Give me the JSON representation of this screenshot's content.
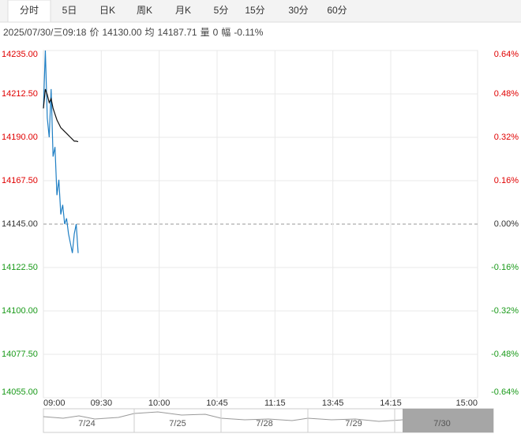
{
  "tabs": [
    "分时",
    "5日",
    "日K",
    "周K",
    "月K",
    "5分",
    "15分",
    "30分",
    "60分"
  ],
  "info": {
    "datetime": "2025/07/30/三09:18",
    "price_label": "价",
    "price": "14130.00",
    "avg_label": "均",
    "avg": "14187.71",
    "vol_label": "量",
    "vol": "0",
    "range_label": "幅",
    "range": "-0.11%"
  },
  "navigator": {
    "dates": [
      "7/24",
      "7/25",
      "7/28",
      "7/29",
      "7/30"
    ]
  },
  "chart_data": {
    "type": "line",
    "x": [
      0,
      1,
      2,
      3,
      4,
      5,
      6,
      7,
      8,
      9,
      10,
      11,
      12,
      13,
      14,
      15,
      16,
      17,
      18
    ],
    "series": [
      {
        "name": "价",
        "color": "#1f7fc4",
        "values": [
          14205,
          14235,
          14200,
          14190,
          14215,
          14180,
          14185,
          14160,
          14168,
          14150,
          14155,
          14145,
          14148,
          14140,
          14135,
          14130,
          14140,
          14145,
          14130
        ]
      },
      {
        "name": "均",
        "color": "#111111",
        "values": [
          14205,
          14215,
          14212,
          14208,
          14210,
          14205,
          14202,
          14199,
          14197,
          14195,
          14194,
          14193,
          14192,
          14191,
          14190,
          14189,
          14188,
          14188,
          14187.71
        ]
      }
    ],
    "baseline": 14145,
    "xlim": [
      0,
      225
    ],
    "xticks": [
      {
        "value": 0,
        "label": "09:00"
      },
      {
        "value": 30,
        "label": "09:30"
      },
      {
        "value": 60,
        "label": "10:00"
      },
      {
        "value": 90,
        "label": "10:45"
      },
      {
        "value": 120,
        "label": "11:15"
      },
      {
        "value": 150,
        "label": "13:45"
      },
      {
        "value": 180,
        "label": "14:15"
      },
      {
        "value": 225,
        "label": "15:00"
      }
    ],
    "ylim": [
      14055,
      14235
    ],
    "yticks": [
      {
        "value": 14235,
        "label": "14235.00"
      },
      {
        "value": 14212.5,
        "label": "14212.50"
      },
      {
        "value": 14190,
        "label": "14190.00"
      },
      {
        "value": 14167.5,
        "label": "14167.50"
      },
      {
        "value": 14145,
        "label": "14145.00"
      },
      {
        "value": 14122.5,
        "label": "14122.50"
      },
      {
        "value": 14100,
        "label": "14100.00"
      },
      {
        "value": 14077.5,
        "label": "14077.50"
      },
      {
        "value": 14055,
        "label": "14055.00"
      }
    ],
    "y2lim": [
      -0.64,
      0.64
    ],
    "y2ticks": [
      {
        "value": 0.64,
        "label": "0.64%"
      },
      {
        "value": 0.48,
        "label": "0.48%"
      },
      {
        "value": 0.32,
        "label": "0.32%"
      },
      {
        "value": 0.16,
        "label": "0.16%"
      },
      {
        "value": 0,
        "label": "0.00%"
      },
      {
        "value": -0.16,
        "label": "-0.16%"
      },
      {
        "value": -0.32,
        "label": "-0.32%"
      },
      {
        "value": -0.48,
        "label": "-0.48%"
      },
      {
        "value": -0.64,
        "label": "-0.64%"
      }
    ],
    "grid": true
  }
}
